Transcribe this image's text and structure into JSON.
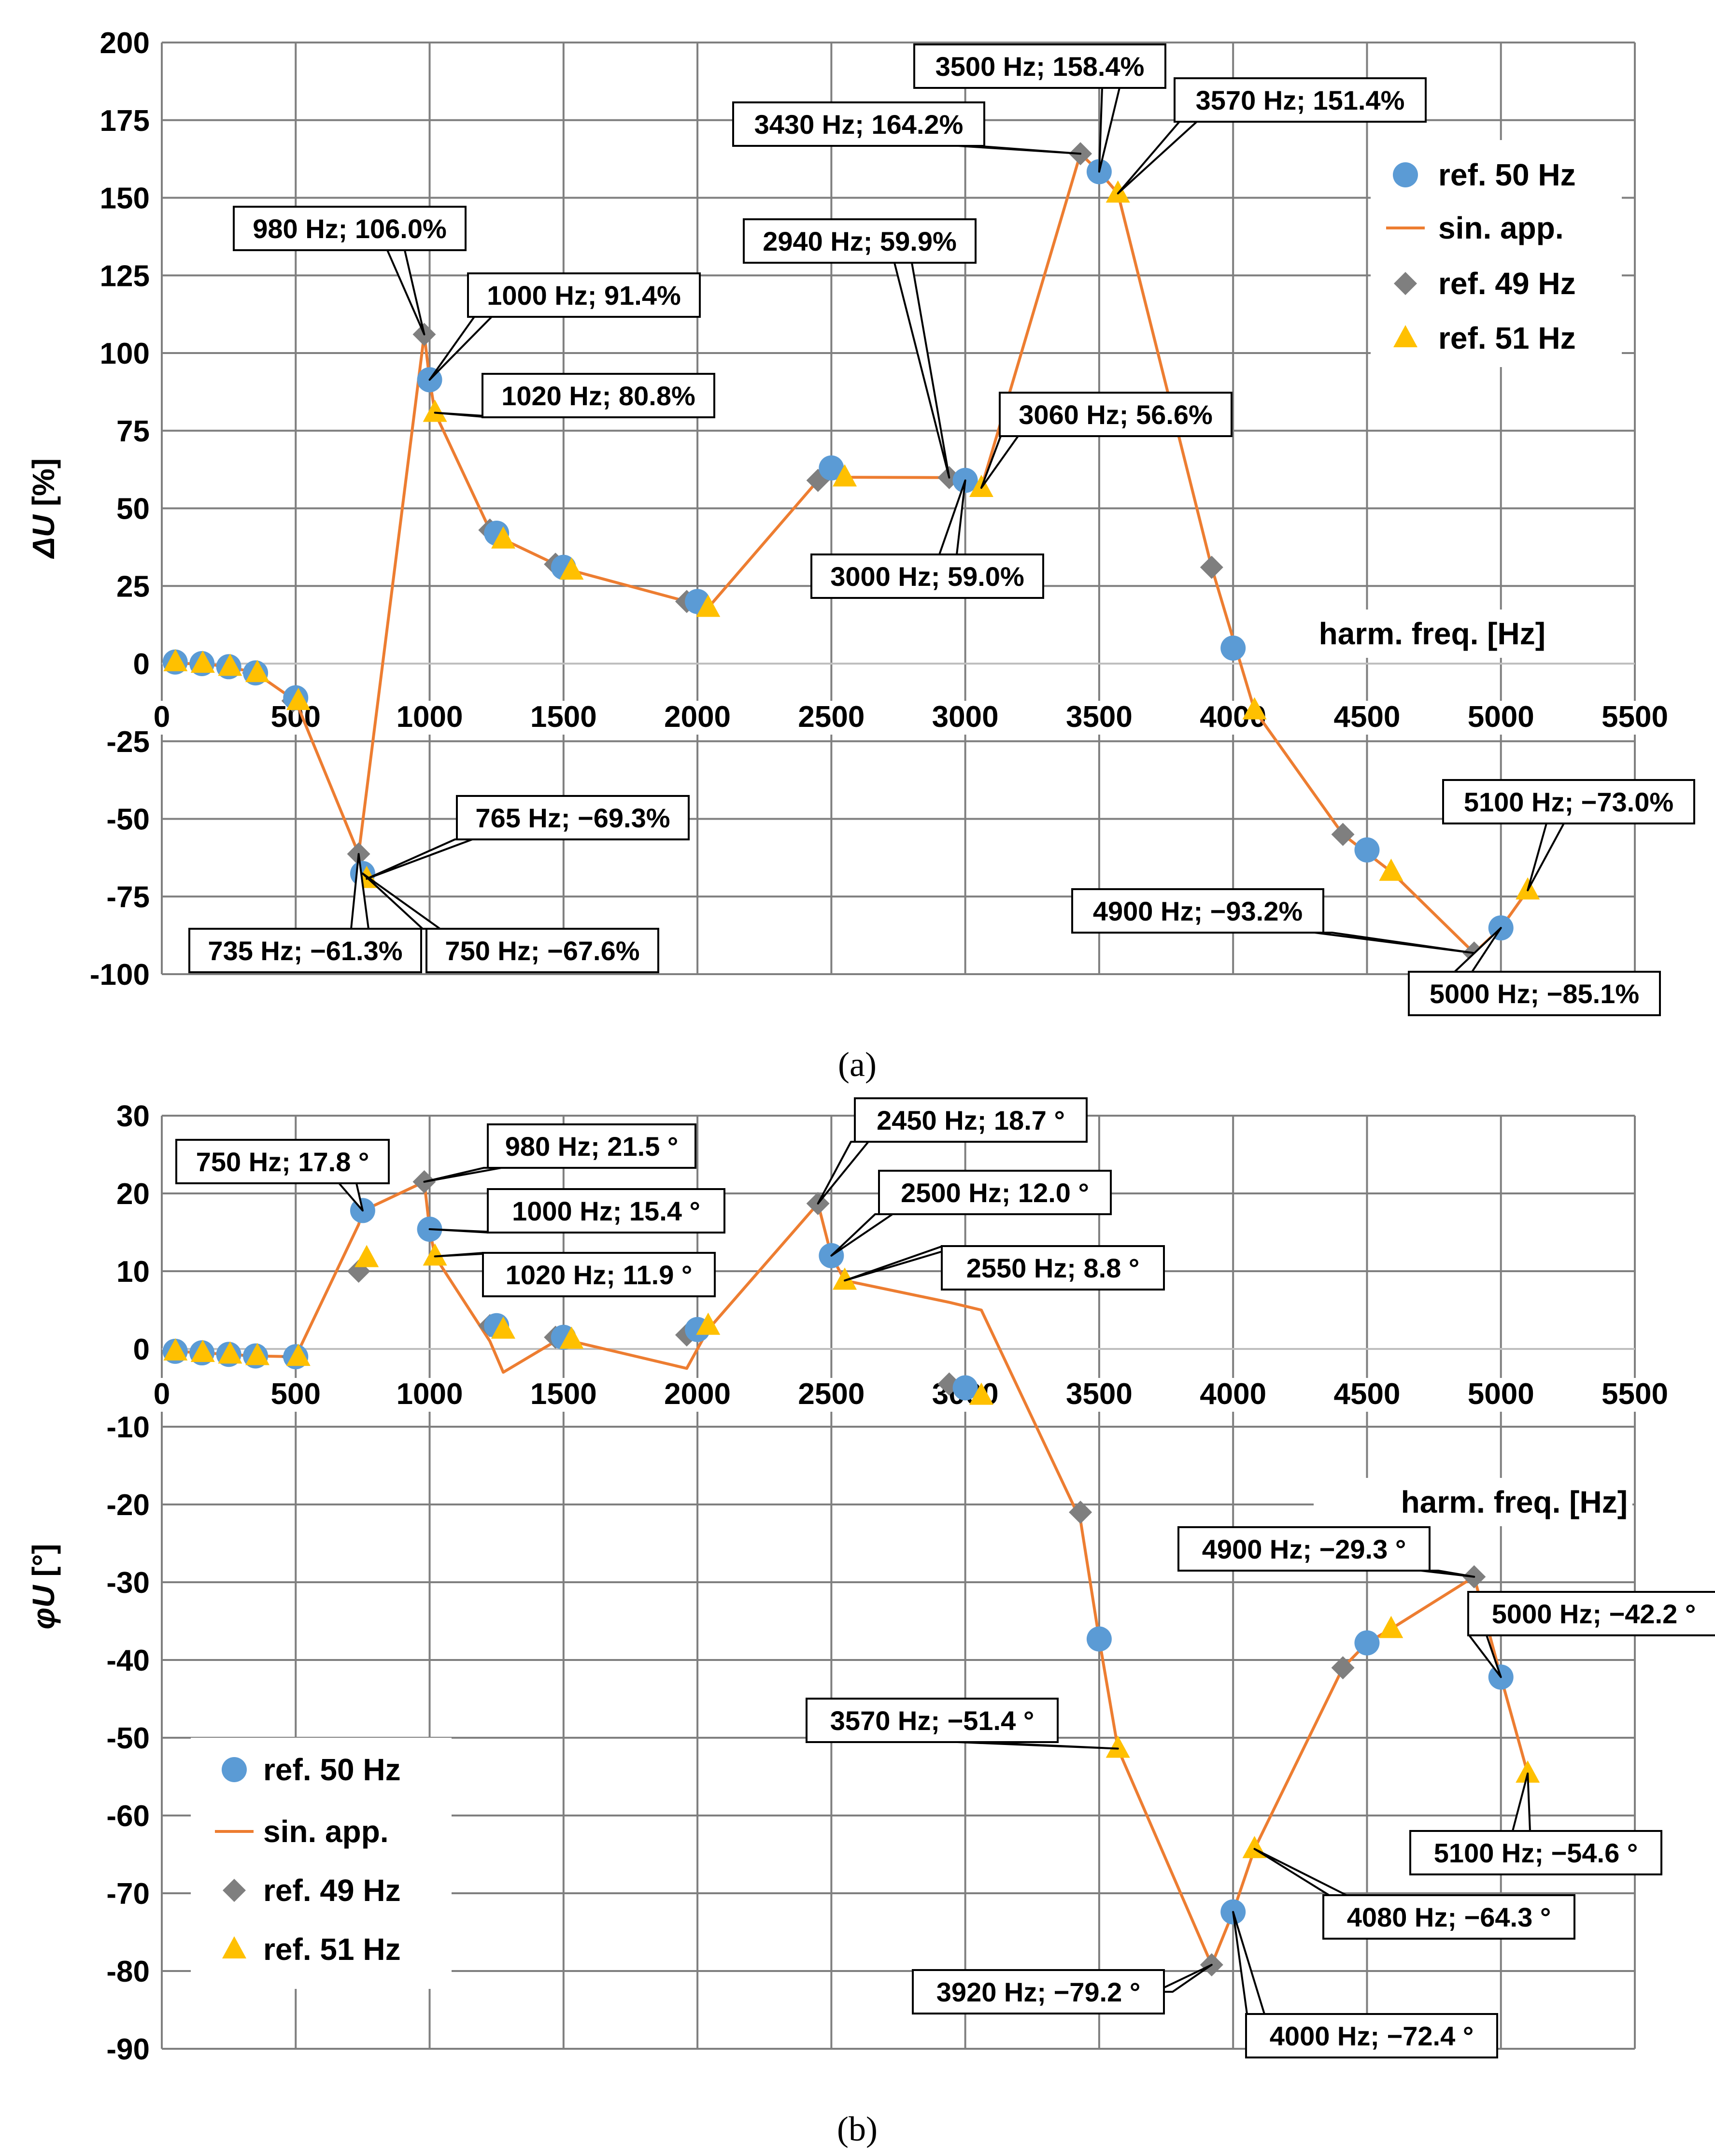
{
  "colors": {
    "ref50": "#5b9bd5",
    "sin": "#ed7d31",
    "ref49": "#7f7f7f",
    "ref51": "#ffc000",
    "grid": "#7f7f7f"
  },
  "chart_data": [
    {
      "id": "a",
      "type": "scatter",
      "caption": "(a)",
      "ylabel": "ΔU [%]",
      "xlabel": "harm. freq. [Hz]",
      "xlim": [
        0,
        5500
      ],
      "ylim": [
        -100,
        200
      ],
      "xticks": [
        0,
        500,
        1000,
        1500,
        2000,
        2500,
        3000,
        3500,
        4000,
        4500,
        5000,
        5500
      ],
      "yticks": [
        -100,
        -75,
        -50,
        -25,
        0,
        25,
        50,
        75,
        100,
        125,
        150,
        175,
        200
      ],
      "legend": [
        "ref. 50 Hz",
        "sin. app.",
        "ref. 49 Hz",
        "ref. 51 Hz"
      ],
      "series": [
        {
          "name": "ref. 50 Hz",
          "marker": "circle",
          "x": [
            50,
            150,
            250,
            350,
            500,
            750,
            1000,
            1250,
            1500,
            2000,
            2500,
            3000,
            3500,
            4000,
            4500,
            5000
          ],
          "y": [
            0.5,
            0,
            -1,
            -3,
            -11,
            -67.6,
            91.4,
            42,
            31,
            20,
            63,
            59.0,
            158.4,
            5,
            -60,
            -85.1
          ]
        },
        {
          "name": "sin. app.",
          "marker": "line",
          "x": [
            50,
            150,
            250,
            350,
            500,
            735,
            980,
            1000,
            1020,
            1225,
            1275,
            1470,
            1530,
            1960,
            2040,
            2450,
            2550,
            2940,
            3060,
            3430,
            3500,
            3570,
            3920,
            4080,
            4410,
            4590,
            4900,
            5000,
            5100
          ],
          "y": [
            0,
            0,
            -1,
            -3,
            -12,
            -61.3,
            106.0,
            91.4,
            80.8,
            43,
            40,
            32,
            30,
            20,
            18,
            59,
            60,
            59.9,
            56.6,
            164.2,
            158.4,
            151.4,
            31,
            -15,
            -55,
            -67,
            -93.2,
            -85.1,
            -73.0
          ]
        },
        {
          "name": "ref. 49 Hz",
          "marker": "diamond",
          "x": [
            49,
            147,
            245,
            343,
            490,
            735,
            980,
            1225,
            1470,
            1960,
            2450,
            2940,
            3430,
            3920,
            4410,
            4900
          ],
          "y": [
            0.5,
            0,
            -1,
            -3,
            -12,
            -61.3,
            106.0,
            43,
            32,
            20,
            59,
            59.9,
            164.2,
            31,
            -55,
            -93.2
          ]
        },
        {
          "name": "ref. 51 Hz",
          "marker": "triangle",
          "x": [
            51,
            153,
            255,
            357,
            510,
            765,
            1020,
            1275,
            1530,
            2040,
            2550,
            3060,
            3570,
            4080,
            4590,
            5100
          ],
          "y": [
            0.5,
            0,
            -1,
            -3,
            -12,
            -69.3,
            80.8,
            40,
            30,
            18,
            60,
            56.6,
            151.4,
            -15,
            -67,
            -73.0
          ]
        }
      ],
      "annotations": [
        {
          "text": "3500 Hz; 158.4%",
          "x": 3500,
          "y": 158.4
        },
        {
          "text": "3430 Hz; 164.2%",
          "x": 3430,
          "y": 164.2
        },
        {
          "text": "3570 Hz; 151.4%",
          "x": 3570,
          "y": 151.4
        },
        {
          "text": "980 Hz; 106.0%",
          "x": 980,
          "y": 106.0
        },
        {
          "text": "1000 Hz; 91.4%",
          "x": 1000,
          "y": 91.4
        },
        {
          "text": "1020 Hz; 80.8%",
          "x": 1020,
          "y": 80.8
        },
        {
          "text": "2940 Hz; 59.9%",
          "x": 2940,
          "y": 59.9
        },
        {
          "text": "3060 Hz; 56.6%",
          "x": 3060,
          "y": 56.6
        },
        {
          "text": "3000 Hz; 59.0%",
          "x": 3000,
          "y": 59.0
        },
        {
          "text": "765 Hz; −69.3%",
          "x": 765,
          "y": -69.3
        },
        {
          "text": "735 Hz; −61.3%",
          "x": 735,
          "y": -61.3
        },
        {
          "text": "750 Hz; −67.6%",
          "x": 750,
          "y": -67.6
        },
        {
          "text": "5100 Hz; −73.0%",
          "x": 5100,
          "y": -73.0
        },
        {
          "text": "4900 Hz; −93.2%",
          "x": 4900,
          "y": -93.2
        },
        {
          "text": "5000 Hz; −85.1%",
          "x": 5000,
          "y": -85.1
        }
      ]
    },
    {
      "id": "b",
      "type": "scatter",
      "caption": "(b)",
      "ylabel": "φU [°]",
      "xlabel": "harm. freq. [Hz]",
      "xlim": [
        0,
        5500
      ],
      "ylim": [
        -90,
        30
      ],
      "xticks": [
        0,
        500,
        1000,
        1500,
        2000,
        2500,
        3000,
        3500,
        4000,
        4500,
        5000,
        5500
      ],
      "yticks": [
        -90,
        -80,
        -70,
        -60,
        -50,
        -40,
        -30,
        -20,
        -10,
        0,
        10,
        20,
        30
      ],
      "legend": [
        "ref. 50 Hz",
        "sin. app.",
        "ref. 49 Hz",
        "ref. 51 Hz"
      ],
      "series": [
        {
          "name": "ref. 50 Hz",
          "marker": "circle",
          "x": [
            50,
            150,
            250,
            350,
            500,
            750,
            1000,
            1250,
            1500,
            2000,
            2500,
            3000,
            3500,
            4000,
            4500,
            5000
          ],
          "y": [
            -0.3,
            -0.5,
            -0.7,
            -0.9,
            -1.0,
            17.8,
            15.4,
            3,
            1.5,
            2.5,
            12.0,
            -5.0,
            -37.3,
            -72.4,
            -37.8,
            -42.2
          ]
        },
        {
          "name": "sin. app.",
          "marker": "line",
          "x": [
            50,
            150,
            250,
            350,
            500,
            735,
            750,
            765,
            980,
            1000,
            1020,
            1225,
            1275,
            1470,
            1530,
            1960,
            2040,
            2450,
            2500,
            2550,
            2940,
            3060,
            3430,
            3500,
            3570,
            3920,
            4000,
            4080,
            4410,
            4500,
            4590,
            4900,
            5000,
            5100
          ],
          "y": [
            -0.3,
            -0.5,
            -0.7,
            -0.9,
            -1.0,
            16,
            17.8,
            18,
            21.5,
            15.4,
            11.9,
            1,
            -3,
            1,
            1,
            -2.5,
            2.5,
            18.7,
            12.0,
            8.8,
            6,
            5,
            -22,
            -37.3,
            -51.4,
            -79.2,
            -72.4,
            -64.3,
            -41,
            -37.8,
            -36,
            -29.3,
            -42.2,
            -54.6
          ]
        },
        {
          "name": "ref. 49 Hz",
          "marker": "diamond",
          "x": [
            49,
            147,
            245,
            343,
            490,
            735,
            980,
            1225,
            1470,
            1960,
            2450,
            2940,
            3430,
            3920,
            4410,
            4900
          ],
          "y": [
            -0.3,
            -0.5,
            -0.7,
            -0.9,
            -1.0,
            10,
            21.5,
            3,
            1.5,
            1.8,
            18.7,
            -4.5,
            -21,
            -79.2,
            -41,
            -29.3
          ]
        },
        {
          "name": "ref. 51 Hz",
          "marker": "triangle",
          "x": [
            51,
            153,
            255,
            357,
            510,
            765,
            1020,
            1275,
            1530,
            2040,
            2550,
            3060,
            3570,
            4080,
            4590,
            5100
          ],
          "y": [
            -0.3,
            -0.5,
            -0.7,
            -0.9,
            -1.0,
            11.7,
            11.9,
            2.5,
            1.2,
            3,
            8.8,
            -6,
            -51.4,
            -64.3,
            -36,
            -54.6
          ]
        }
      ],
      "annotations": [
        {
          "text": "2450 Hz; 18.7 °",
          "x": 2450,
          "y": 18.7
        },
        {
          "text": "750 Hz; 17.8 °",
          "x": 750,
          "y": 17.8
        },
        {
          "text": "980 Hz; 21.5 °",
          "x": 980,
          "y": 21.5
        },
        {
          "text": "1000 Hz; 15.4 °",
          "x": 1000,
          "y": 15.4
        },
        {
          "text": "2500 Hz; 12.0 °",
          "x": 2500,
          "y": 12.0
        },
        {
          "text": "1020 Hz; 11.9 °",
          "x": 1020,
          "y": 11.9
        },
        {
          "text": "2550 Hz; 8.8 °",
          "x": 2550,
          "y": 8.8
        },
        {
          "text": "4900 Hz; −29.3 °",
          "x": 4900,
          "y": -29.3
        },
        {
          "text": "5000 Hz; −42.2 °",
          "x": 5000,
          "y": -42.2
        },
        {
          "text": "3570 Hz; −51.4 °",
          "x": 3570,
          "y": -51.4
        },
        {
          "text": "5100 Hz; −54.6 °",
          "x": 5100,
          "y": -54.6
        },
        {
          "text": "4080 Hz; −64.3 °",
          "x": 4080,
          "y": -64.3
        },
        {
          "text": "3920 Hz; −79.2 °",
          "x": 3920,
          "y": -79.2
        },
        {
          "text": "4000 Hz; −72.4 °",
          "x": 4000,
          "y": -72.4
        }
      ]
    }
  ]
}
